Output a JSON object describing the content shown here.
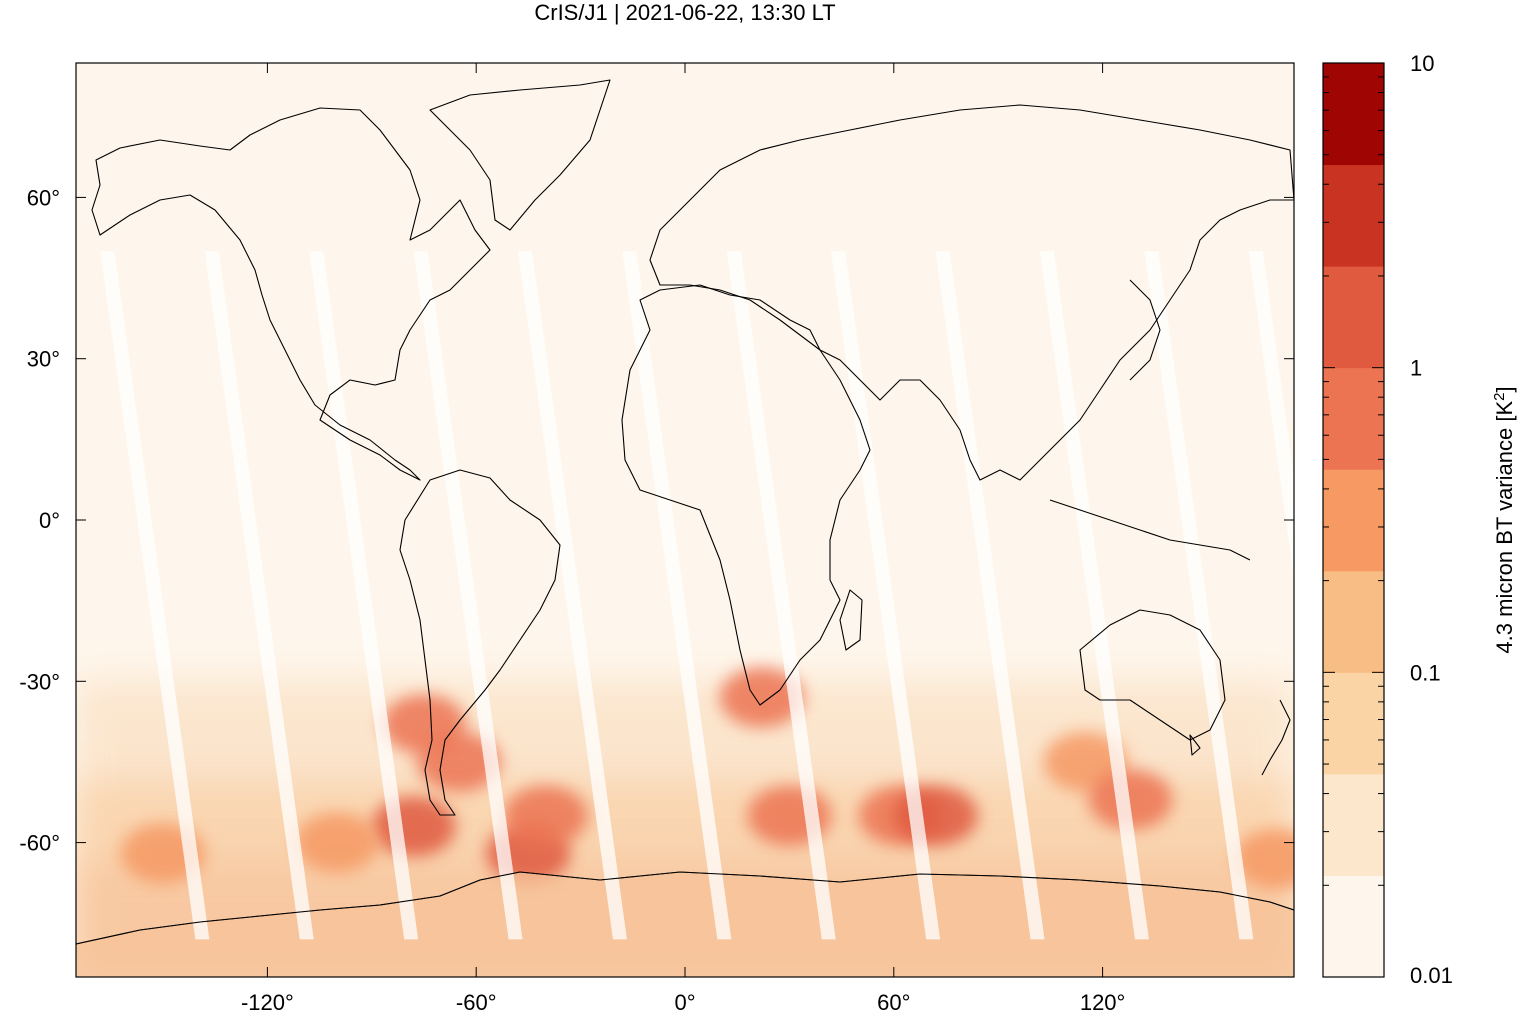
{
  "title": "CrIS/J1 | 2021-06-22, 13:30 LT",
  "colorbar": {
    "label": "4.3 micron BT variance [K",
    "label_sup": "2",
    "label_tail": "]",
    "tick_labels": [
      "10",
      "1",
      "0.1",
      "0.01"
    ],
    "scale": "log",
    "range": [
      0.01,
      10
    ],
    "colors": [
      "#fef6ec",
      "#fce7cc",
      "#fbd4a6",
      "#f8bd84",
      "#f69963",
      "#ec7452",
      "#e05a40",
      "#c83322",
      "#9e0503"
    ]
  },
  "chart_data": {
    "type": "heatmap",
    "title": "CrIS/J1 | 2021-06-22, 13:30 LT",
    "xlabel": "",
    "ylabel": "",
    "x_ticks": [
      "-120°",
      "-60°",
      "0°",
      "60°",
      "120°"
    ],
    "y_ticks": [
      "60°",
      "30°",
      "0°",
      "-30°",
      "-60°"
    ],
    "xlim": [
      -175,
      175
    ],
    "ylim": [
      -85,
      85
    ],
    "grid": false,
    "background_color": "#fef6ec",
    "swath_gap_color": "#ffffff",
    "coastline_color": "#000000",
    "hotspots": [
      {
        "lon": -75,
        "lat": -38,
        "value": 0.5
      },
      {
        "lon": -78,
        "lat": -57,
        "value": 1.0
      },
      {
        "lon": -65,
        "lat": -45,
        "value": 0.5
      },
      {
        "lon": -45,
        "lat": -62,
        "value": 2.0
      },
      {
        "lon": -40,
        "lat": -55,
        "value": 0.7
      },
      {
        "lon": 22,
        "lat": -33,
        "value": 0.5
      },
      {
        "lon": 30,
        "lat": -55,
        "value": 0.5
      },
      {
        "lon": 62,
        "lat": -55,
        "value": 0.7
      },
      {
        "lon": 72,
        "lat": -55,
        "value": 1.0
      },
      {
        "lon": 115,
        "lat": -45,
        "value": 0.4
      },
      {
        "lon": 128,
        "lat": -52,
        "value": 0.5
      },
      {
        "lon": 170,
        "lat": -63,
        "value": 0.4
      },
      {
        "lon": -150,
        "lat": -62,
        "value": 0.3
      },
      {
        "lon": -100,
        "lat": -60,
        "value": 0.4
      }
    ]
  }
}
